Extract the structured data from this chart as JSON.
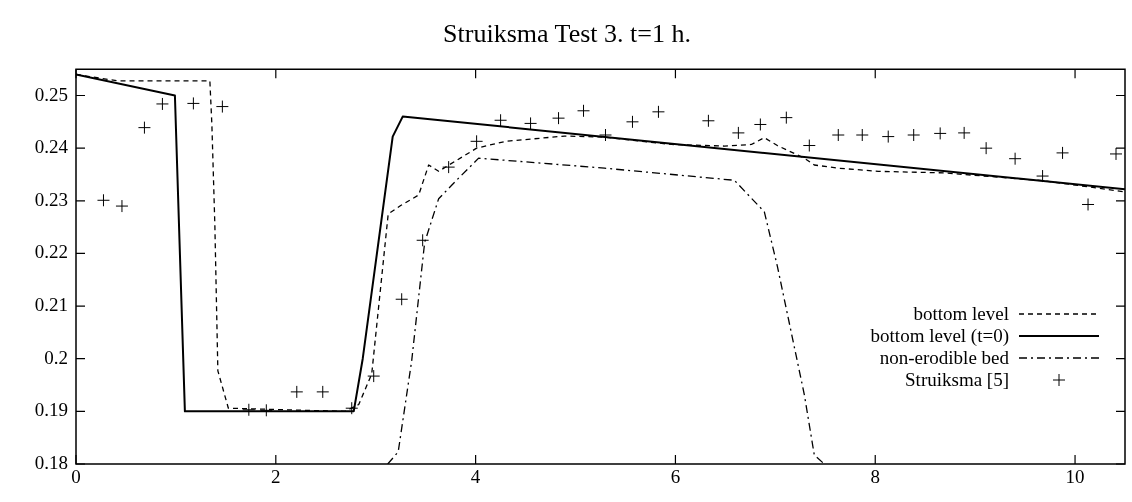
{
  "chart_data": {
    "type": "line",
    "title": "Struiksma Test 3. t=1 h.",
    "xlim": [
      0,
      10.5
    ],
    "ylim": [
      0.18,
      0.255
    ],
    "xticks": [
      0,
      2,
      4,
      6,
      8,
      10
    ],
    "yticks": [
      0.18,
      0.19,
      {
        "value": 0.2,
        "label": "0.2"
      },
      0.21,
      0.22,
      0.23,
      0.24,
      0.25
    ],
    "grid": false,
    "legend": "right",
    "series": [
      {
        "name": "bottom level",
        "color": "#000000",
        "line_style": "dashed",
        "marker": "none",
        "x": [
          0,
          0.41,
          1.34,
          1.36,
          1.39,
          1.42,
          1.525,
          2.69,
          2.83,
          2.96,
          3.125,
          3.25,
          3.43,
          3.53,
          3.63,
          4.01,
          4.3,
          4.89,
          5.29,
          5.96,
          6.49,
          6.76,
          6.89,
          7.02,
          7.29,
          7.39,
          7.63,
          8.03,
          8.69,
          9.69,
          10.5
        ],
        "values": [
          0.254,
          0.2528,
          0.2528,
          0.2445,
          0.2253,
          0.1977,
          0.1906,
          0.19,
          0.1913,
          0.1971,
          0.2275,
          0.2291,
          0.2311,
          0.2368,
          0.2356,
          0.24,
          0.2413,
          0.2423,
          0.2421,
          0.2407,
          0.2404,
          0.2407,
          0.242,
          0.2405,
          0.2381,
          0.2368,
          0.2362,
          0.2356,
          0.2353,
          0.2338,
          0.2317
        ]
      },
      {
        "name": "bottom level (t=0)",
        "color": "#000000",
        "line_style": "solid",
        "marker": "none",
        "x": [
          0,
          0.99,
          1.09,
          2.78,
          2.87,
          3.17,
          3.27,
          10.5
        ],
        "values": [
          0.254,
          0.25,
          0.19,
          0.19,
          0.2,
          0.2422,
          0.246,
          0.2322
        ]
      },
      {
        "name": "non-erodible bed",
        "color": "#000000",
        "line_style": "dashdot",
        "marker": "none",
        "x": [
          3.12,
          3.225,
          3.36,
          3.49,
          3.63,
          3.83,
          4.03,
          5.29,
          6.59,
          6.89,
          7.02,
          7.29,
          7.39,
          7.49
        ],
        "values": [
          0.18,
          0.1823,
          0.1996,
          0.2221,
          0.2304,
          0.2343,
          0.2381,
          0.2362,
          0.2339,
          0.2279,
          0.2176,
          0.1932,
          0.1817,
          0.18
        ]
      },
      {
        "name": "Struiksma [5]",
        "type": "scatter",
        "color": "#000000",
        "marker": "cross",
        "x": [
          0.275,
          0.46,
          0.685,
          0.865,
          1.175,
          1.465,
          1.73,
          1.905,
          2.21,
          2.47,
          2.76,
          2.98,
          3.26,
          3.47,
          3.73,
          4.01,
          4.25,
          4.55,
          4.83,
          5.08,
          5.3,
          5.57,
          5.83,
          6.33,
          6.63,
          6.85,
          7.11,
          7.34,
          7.63,
          7.87,
          8.13,
          8.385,
          8.65,
          8.89,
          9.11,
          9.4,
          9.675,
          9.875,
          10.13,
          10.41
        ],
        "values": [
          0.2301,
          0.229,
          0.2439,
          0.2484,
          0.2485,
          0.2479,
          0.1903,
          0.1902,
          0.1937,
          0.1937,
          0.1906,
          0.1967,
          0.2113,
          0.2225,
          0.2364,
          0.2413,
          0.2453,
          0.2447,
          0.2457,
          0.2471,
          0.2425,
          0.245,
          0.2469,
          0.2452,
          0.2429,
          0.2445,
          0.2458,
          0.2405,
          0.2425,
          0.2425,
          0.2422,
          0.2425,
          0.2428,
          0.2429,
          0.24,
          0.238,
          0.2347,
          0.2391,
          0.2293,
          0.2389
        ]
      }
    ]
  }
}
